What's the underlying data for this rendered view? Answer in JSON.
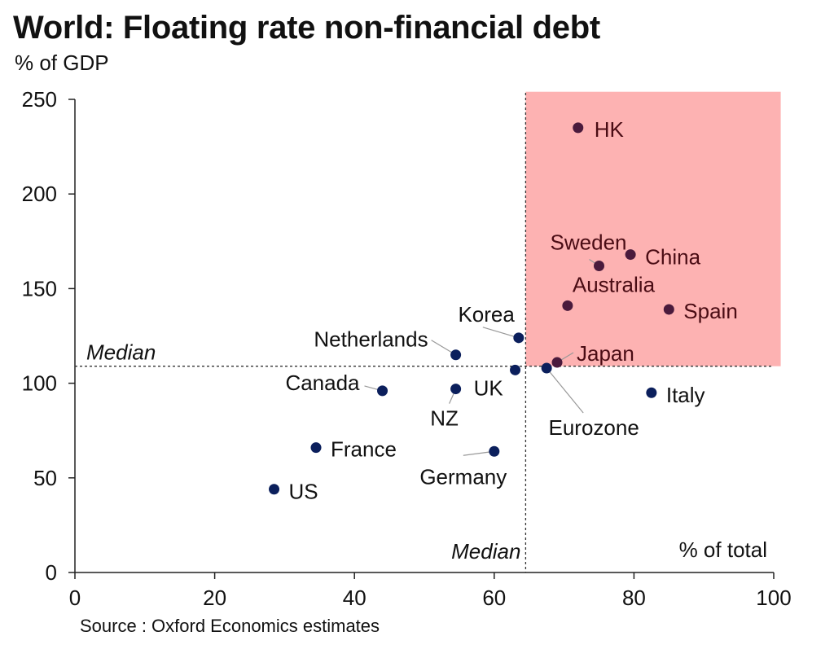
{
  "title": "World: Floating rate non-financial debt",
  "subtitle": "% of GDP",
  "source": "Source : Oxford Economics estimates",
  "colors": {
    "low": "#0b1f5c",
    "high": "#4a1a3c",
    "highlight_fill": "#fdb2b2",
    "high_label": "#4a0c14"
  },
  "chart_data": {
    "type": "scatter",
    "title": "World: Floating rate non-financial debt",
    "ylabel": "% of GDP",
    "xlabel": "% of total",
    "xlim": [
      0,
      100
    ],
    "ylim": [
      0,
      250
    ],
    "x_ticks": [
      0,
      20,
      40,
      60,
      80,
      100
    ],
    "y_ticks": [
      0,
      50,
      100,
      150,
      200,
      250
    ],
    "median_x": 64.5,
    "median_y": 109,
    "median_label": "Median",
    "highlight_region": {
      "x_from": 64.5,
      "x_to": 101,
      "y_from": 109,
      "y_to": 254
    },
    "points": [
      {
        "label": "HK",
        "x": 72,
        "y": 235,
        "group": "high"
      },
      {
        "label": "China",
        "x": 79.5,
        "y": 168,
        "group": "high"
      },
      {
        "label": "Sweden",
        "x": 75,
        "y": 162,
        "group": "high"
      },
      {
        "label": "Australia",
        "x": 70.5,
        "y": 141,
        "group": "high"
      },
      {
        "label": "Spain",
        "x": 85,
        "y": 139,
        "group": "high"
      },
      {
        "label": "Japan",
        "x": 69,
        "y": 111,
        "group": "high"
      },
      {
        "label": "Korea",
        "x": 63.5,
        "y": 124,
        "group": "low"
      },
      {
        "label": "Netherlands",
        "x": 54.5,
        "y": 115,
        "group": "low"
      },
      {
        "label": "Eurozone",
        "x": 67.5,
        "y": 108,
        "group": "low"
      },
      {
        "label": "",
        "x": 63,
        "y": 107,
        "group": "low"
      },
      {
        "label": "Canada",
        "x": 44,
        "y": 96,
        "group": "low"
      },
      {
        "label": "UK",
        "x": 54.5,
        "y": 97,
        "group": "low"
      },
      {
        "label": "NZ",
        "x": 54.5,
        "y": 97,
        "group": "low"
      },
      {
        "label": "Italy",
        "x": 82.5,
        "y": 95,
        "group": "low"
      },
      {
        "label": "France",
        "x": 34.5,
        "y": 66,
        "group": "low"
      },
      {
        "label": "Germany",
        "x": 60,
        "y": 64,
        "group": "low"
      },
      {
        "label": "US",
        "x": 28.5,
        "y": 44,
        "group": "low"
      }
    ]
  }
}
